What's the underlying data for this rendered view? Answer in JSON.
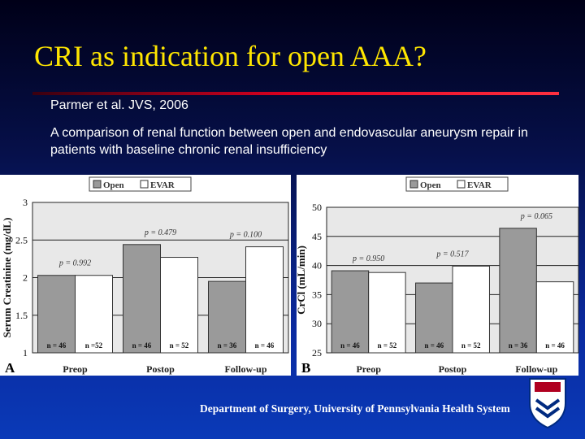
{
  "slide": {
    "title": "CRI as  indication for open AAA?",
    "citation": "Parmer et al.  JVS, 2006",
    "description": "A comparison of renal function between open and endovascular aneurysm repair in patients with baseline chronic renal insufficiency",
    "footer": "Department of Surgery, University of Pennsylvania Health System"
  },
  "chart_data": [
    {
      "type": "bar",
      "panel": "A",
      "ylabel": "Serum Creatinine (mg/dL)",
      "categories": [
        "Preop",
        "Postop",
        "Follow-up"
      ],
      "series": [
        {
          "name": "Open",
          "color": "#9a9a9a",
          "values": [
            2.03,
            2.44,
            1.95
          ],
          "n_labels": [
            "n = 46",
            "n = 46",
            "n = 36"
          ]
        },
        {
          "name": "EVAR",
          "color": "#ffffff",
          "values": [
            2.03,
            2.27,
            2.41
          ],
          "n_labels": [
            "n =52",
            "n = 52",
            "n = 46"
          ]
        }
      ],
      "p_labels": [
        "p = 0.992",
        "p = 0.479",
        "p = 0.100"
      ],
      "ylim": [
        1,
        3
      ],
      "yticks": [
        1,
        1.5,
        2,
        2.5,
        3
      ],
      "grid": true
    },
    {
      "type": "bar",
      "panel": "B",
      "ylabel": "CrCl (mL/min)",
      "categories": [
        "Preop",
        "Postop",
        "Follow-up"
      ],
      "series": [
        {
          "name": "Open",
          "color": "#9a9a9a",
          "values": [
            39.1,
            37.0,
            46.4
          ],
          "n_labels": [
            "n = 46",
            "n = 46",
            "n = 36"
          ]
        },
        {
          "name": "EVAR",
          "color": "#ffffff",
          "values": [
            38.8,
            39.9,
            37.2
          ],
          "n_labels": [
            "n = 52",
            "n = 52",
            "n = 46"
          ]
        }
      ],
      "p_labels": [
        "p = 0.950",
        "p = 0.517",
        "p = 0.065"
      ],
      "ylim": [
        25,
        50
      ],
      "yticks": [
        25,
        30,
        35,
        40,
        45,
        50
      ],
      "grid": true
    }
  ]
}
